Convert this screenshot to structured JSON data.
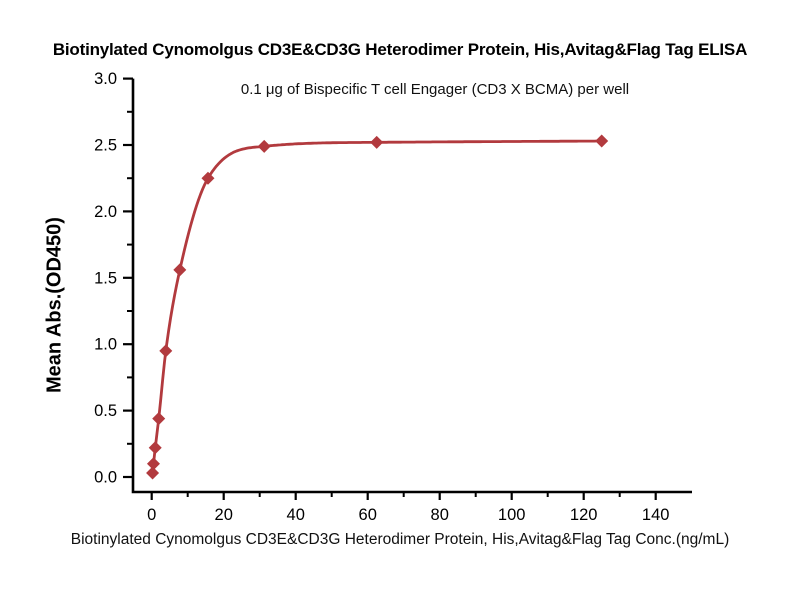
{
  "chart_data": {
    "type": "line",
    "title": "Biotinylated Cynomolgus CD3E&CD3G Heterodimer Protein, His,Avitag&Flag Tag ELISA",
    "subtitle": "0.1 μg of Bispecific T cell Engager (CD3 X BCMA) per well",
    "xlabel": "Biotinylated Cynomolgus CD3E&CD3G Heterodimer Protein, His,Avitag&Flag Tag Conc.(ng/mL)",
    "ylabel": "Mean Abs.(OD450)",
    "series": [
      {
        "x": [
          0.24,
          0.49,
          0.98,
          1.95,
          3.91,
          7.81,
          15.63,
          31.25,
          62.5,
          125
        ],
        "y": [
          0.03,
          0.1,
          0.22,
          0.44,
          0.95,
          1.56,
          2.25,
          2.49,
          2.52,
          2.53
        ],
        "color": "#b23a3e",
        "marker": "diamond"
      }
    ],
    "xlim": [
      -5.2,
      150
    ],
    "ylim": [
      -0.11,
      3.0
    ],
    "x_ticks": [
      "0",
      "20",
      "40",
      "60",
      "80",
      "100",
      "120",
      "140"
    ],
    "x_minor_ticks": [
      10,
      30,
      50,
      70,
      90,
      110,
      130
    ],
    "y_ticks": [
      "0.0",
      "0.5",
      "1.0",
      "1.5",
      "2.0",
      "2.5",
      "3.0"
    ],
    "y_minor_ticks": [
      0.25,
      0.75,
      1.25,
      1.75,
      2.25,
      2.75
    ],
    "grid": false,
    "legend": "none",
    "axis_color": "#000000",
    "background": "#ffffff"
  }
}
